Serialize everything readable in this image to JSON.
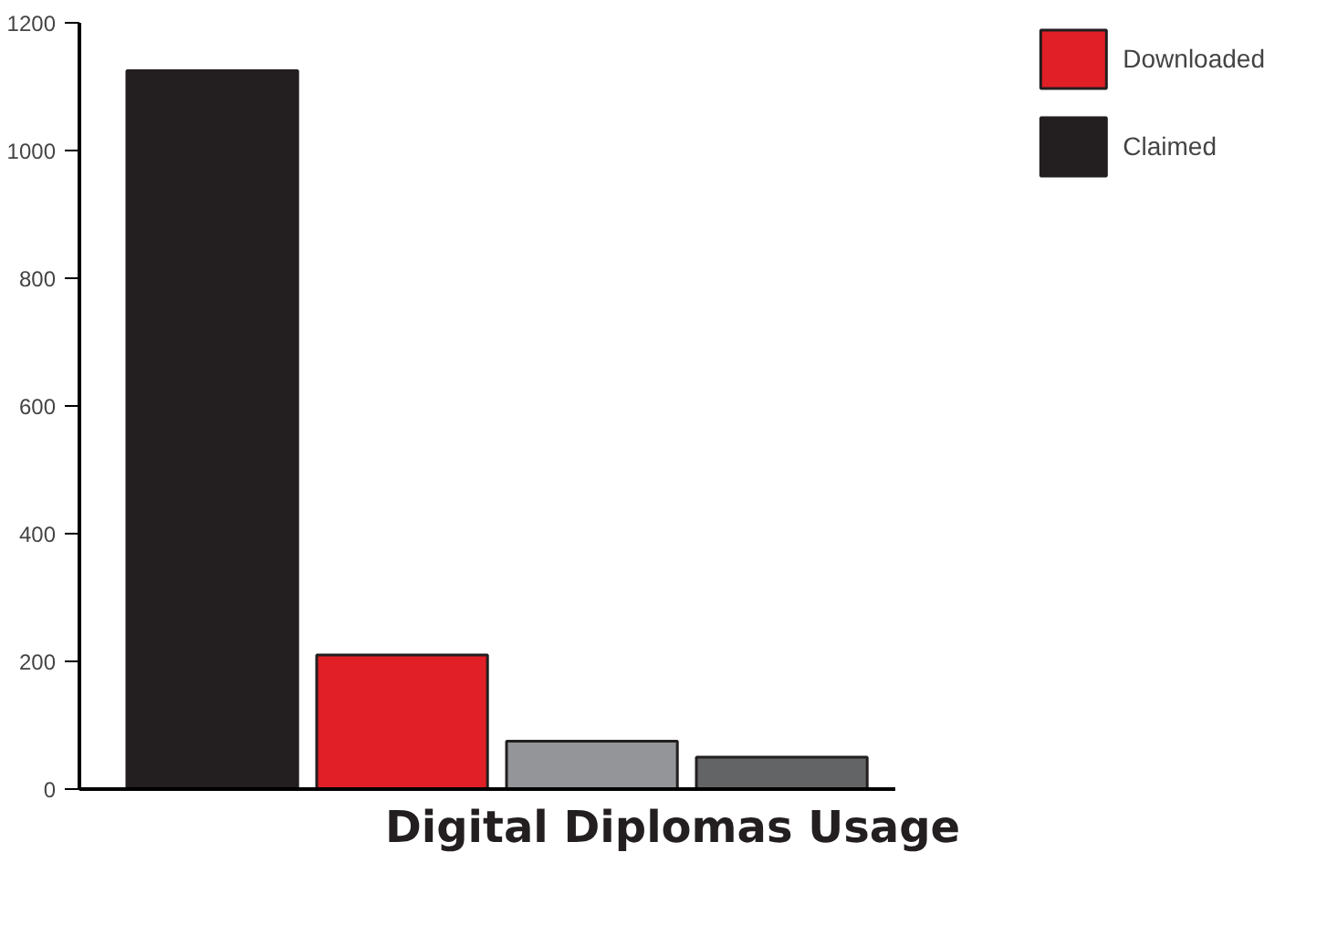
{
  "chart_data": {
    "type": "bar",
    "title": "Digital Diplomas Usage",
    "categories": [
      null,
      null,
      null,
      null
    ],
    "series": [
      {
        "name": "Claimed",
        "color": "#231f20",
        "values": [
          1125,
          null,
          null,
          null
        ]
      },
      {
        "name": "Downloaded",
        "color": "#e01f26",
        "values": [
          null,
          210,
          null,
          null
        ]
      },
      {
        "color": "#939598",
        "values": [
          null,
          null,
          75,
          null
        ]
      },
      {
        "color": "#636466",
        "values": [
          null,
          null,
          null,
          50
        ]
      }
    ],
    "ylim": [
      0,
      1200
    ],
    "yticks": [
      0,
      200,
      400,
      600,
      800,
      1000,
      1200
    ],
    "grid": false,
    "legend": "top right",
    "tick_labels": "y"
  }
}
